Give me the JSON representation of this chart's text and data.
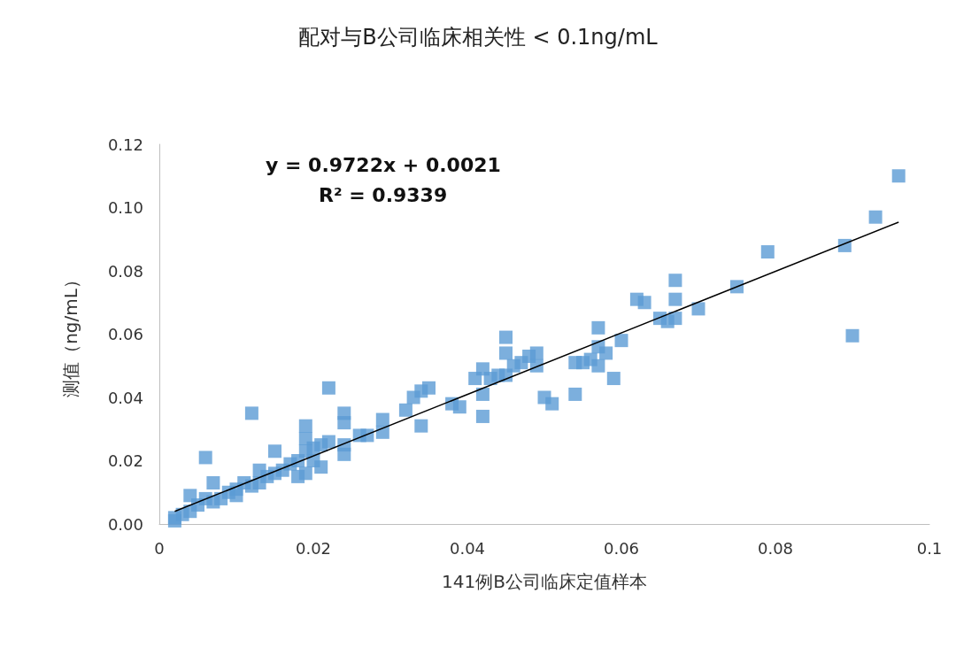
{
  "chart_data": {
    "type": "scatter",
    "title": "配对与B公司临床相关性 < 0.1ng/mL",
    "xlabel": "141例B公司临床定值样本",
    "ylabel": "测值（ng/mL）",
    "annotations": [
      "y = 0.9722x + 0.0021",
      "R² = 0.9339"
    ],
    "marker": "square",
    "grid": false,
    "xlim": [
      0,
      0.1
    ],
    "xticks": [
      0,
      0.02,
      0.04,
      0.06,
      0.08,
      0.1
    ],
    "ylim": [
      0,
      0.12
    ],
    "yticks": [
      {
        "value": 0,
        "label": "0.00"
      },
      {
        "value": 0.02,
        "label": "0.02"
      },
      {
        "value": 0.04,
        "label": "0.04"
      },
      {
        "value": 0.06,
        "label": "0.06"
      },
      {
        "value": 0.08,
        "label": "0.08"
      },
      {
        "value": 0.1,
        "label": "0.10"
      },
      {
        "value": 0.12,
        "label": "0.12"
      }
    ],
    "series": [
      {
        "type": "scatter",
        "color": "#5b9bd5",
        "x": [
          0.096,
          0.093,
          0.089,
          0.09,
          0.079,
          0.075,
          0.07,
          0.067,
          0.067,
          0.067,
          0.066,
          0.065,
          0.063,
          0.062,
          0.06,
          0.059,
          0.058,
          0.057,
          0.057,
          0.057,
          0.056,
          0.055,
          0.054,
          0.054,
          0.051,
          0.05,
          0.049,
          0.049,
          0.048,
          0.047,
          0.046,
          0.045,
          0.045,
          0.045,
          0.044,
          0.043,
          0.042,
          0.042,
          0.042,
          0.041,
          0.039,
          0.038,
          0.035,
          0.034,
          0.034,
          0.033,
          0.032,
          0.029,
          0.029,
          0.027,
          0.026,
          0.024,
          0.024,
          0.024,
          0.024,
          0.022,
          0.022,
          0.021,
          0.021,
          0.02,
          0.02,
          0.019,
          0.019,
          0.019,
          0.019,
          0.018,
          0.018,
          0.017,
          0.016,
          0.015,
          0.015,
          0.014,
          0.013,
          0.013,
          0.012,
          0.012,
          0.011,
          0.01,
          0.01,
          0.009,
          0.008,
          0.007,
          0.007,
          0.006,
          0.006,
          0.005,
          0.004,
          0.004,
          0.003,
          0.002,
          0.002
        ],
        "values": [
          0.11,
          0.097,
          0.088,
          0.0595,
          0.086,
          0.075,
          0.068,
          0.077,
          0.071,
          0.065,
          0.064,
          0.065,
          0.07,
          0.071,
          0.058,
          0.046,
          0.054,
          0.062,
          0.056,
          0.05,
          0.052,
          0.051,
          0.051,
          0.041,
          0.038,
          0.04,
          0.054,
          0.05,
          0.053,
          0.051,
          0.05,
          0.059,
          0.054,
          0.047,
          0.047,
          0.046,
          0.049,
          0.041,
          0.034,
          0.046,
          0.037,
          0.038,
          0.043,
          0.042,
          0.031,
          0.04,
          0.036,
          0.033,
          0.029,
          0.028,
          0.028,
          0.035,
          0.032,
          0.025,
          0.022,
          0.043,
          0.026,
          0.025,
          0.018,
          0.024,
          0.02,
          0.031,
          0.027,
          0.023,
          0.016,
          0.02,
          0.015,
          0.019,
          0.017,
          0.023,
          0.016,
          0.015,
          0.017,
          0.013,
          0.035,
          0.012,
          0.013,
          0.011,
          0.009,
          0.01,
          0.008,
          0.013,
          0.007,
          0.021,
          0.008,
          0.006,
          0.009,
          0.004,
          0.003,
          0.002,
          0.001
        ]
      },
      {
        "type": "line",
        "color": "#000000",
        "marker": "none",
        "line_style": "solid",
        "x": [
          0.002,
          0.096
        ],
        "values": [
          0.004,
          0.0954
        ]
      }
    ]
  }
}
